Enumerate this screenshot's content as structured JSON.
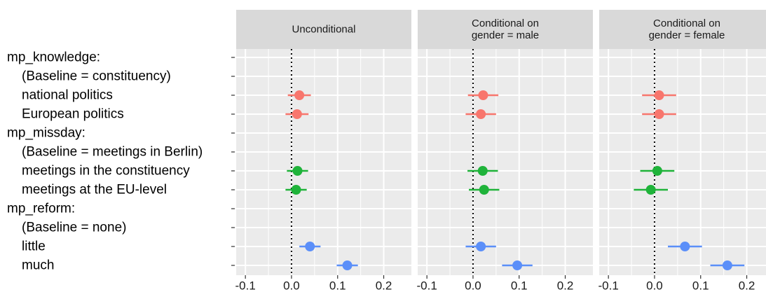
{
  "chart_data": {
    "type": "scatter",
    "subtype": "coefficient-plot-with-intervals",
    "xlim": [
      -0.12,
      0.26
    ],
    "x_ticks": [
      -0.1,
      0.0,
      0.1,
      0.2
    ],
    "x_tick_labels": [
      "-0.1",
      "0.0",
      "0.1",
      "0.2"
    ],
    "reference_line": {
      "x": 0,
      "style": "dotted"
    },
    "grid": true,
    "rows": [
      "mp_knowledge:",
      "(Baseline = constituency)",
      "national politics",
      "European politics",
      "mp_missday:",
      "(Baseline = meetings in Berlin)",
      "meetings in the constituency",
      "meetings at the EU-level",
      "mp_reform:",
      "(Baseline = none)",
      "little",
      "much"
    ],
    "row_indent": [
      false,
      true,
      true,
      true,
      false,
      true,
      true,
      true,
      false,
      true,
      true,
      true
    ],
    "panels": [
      {
        "title": [
          "Unconditional"
        ],
        "points": [
          {
            "row": 2,
            "estimate": 0.017,
            "lower": -0.008,
            "upper": 0.042,
            "group": "mp_knowledge"
          },
          {
            "row": 3,
            "estimate": 0.012,
            "lower": -0.013,
            "upper": 0.037,
            "group": "mp_knowledge"
          },
          {
            "row": 6,
            "estimate": 0.013,
            "lower": -0.01,
            "upper": 0.036,
            "group": "mp_missday"
          },
          {
            "row": 7,
            "estimate": 0.01,
            "lower": -0.013,
            "upper": 0.033,
            "group": "mp_missday"
          },
          {
            "row": 10,
            "estimate": 0.04,
            "lower": 0.017,
            "upper": 0.063,
            "group": "mp_reform"
          },
          {
            "row": 11,
            "estimate": 0.121,
            "lower": 0.098,
            "upper": 0.144,
            "group": "mp_reform"
          }
        ]
      },
      {
        "title": [
          "Conditional on",
          "gender = male"
        ],
        "points": [
          {
            "row": 2,
            "estimate": 0.022,
            "lower": -0.011,
            "upper": 0.055,
            "group": "mp_knowledge"
          },
          {
            "row": 3,
            "estimate": 0.017,
            "lower": -0.016,
            "upper": 0.05,
            "group": "mp_knowledge"
          },
          {
            "row": 6,
            "estimate": 0.021,
            "lower": -0.012,
            "upper": 0.054,
            "group": "mp_missday"
          },
          {
            "row": 7,
            "estimate": 0.024,
            "lower": -0.009,
            "upper": 0.057,
            "group": "mp_missday"
          },
          {
            "row": 10,
            "estimate": 0.017,
            "lower": -0.016,
            "upper": 0.05,
            "group": "mp_reform"
          },
          {
            "row": 11,
            "estimate": 0.096,
            "lower": 0.063,
            "upper": 0.129,
            "group": "mp_reform"
          }
        ]
      },
      {
        "title": [
          "Conditional on",
          "gender = female"
        ],
        "points": [
          {
            "row": 2,
            "estimate": 0.01,
            "lower": -0.027,
            "upper": 0.047,
            "group": "mp_knowledge"
          },
          {
            "row": 3,
            "estimate": 0.01,
            "lower": -0.027,
            "upper": 0.047,
            "group": "mp_knowledge"
          },
          {
            "row": 6,
            "estimate": 0.006,
            "lower": -0.031,
            "upper": 0.043,
            "group": "mp_missday"
          },
          {
            "row": 7,
            "estimate": -0.008,
            "lower": -0.045,
            "upper": 0.029,
            "group": "mp_missday"
          },
          {
            "row": 10,
            "estimate": 0.066,
            "lower": 0.029,
            "upper": 0.103,
            "group": "mp_reform"
          },
          {
            "row": 11,
            "estimate": 0.158,
            "lower": 0.121,
            "upper": 0.195,
            "group": "mp_reform"
          }
        ]
      }
    ],
    "colors": {
      "mp_knowledge": "#f8766d",
      "mp_missday": "#1fb33a",
      "mp_reform": "#5b8ff9",
      "panel_background": "#ebebeb",
      "strip_background": "#d9d9d9",
      "grid": "#ffffff"
    }
  }
}
